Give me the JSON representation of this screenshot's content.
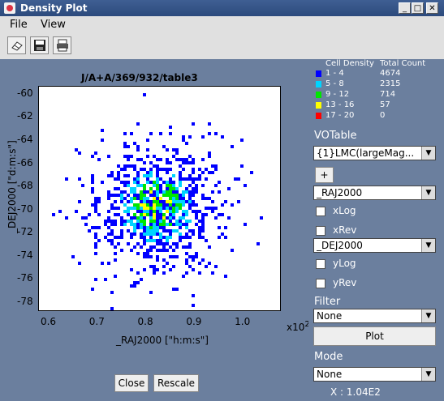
{
  "window": {
    "title": "Density Plot"
  },
  "menu": {
    "file": "File",
    "view": "View"
  },
  "toolbar": {
    "icons": [
      "eraser-icon",
      "save-icon",
      "print-icon"
    ]
  },
  "chart_data": {
    "type": "heatmap",
    "title": "J/A+A/369/932/table3",
    "xlabel": "_RAJ2000 [\"h:m:s\"]",
    "ylabel": "_DEJ2000 [\"d:m:s\"]",
    "x_exponent": "x10",
    "x_exponent_power": "2",
    "xlim": [
      0.58,
      1.08
    ],
    "ylim": [
      -78.8,
      -59.3
    ],
    "x_ticks": [
      "0.6",
      "0.7",
      "0.8",
      "0.9",
      "1.0"
    ],
    "y_ticks": [
      "-60",
      "-62",
      "-64",
      "-66",
      "-68",
      "-70",
      "-72",
      "-74",
      "-76",
      "-78"
    ],
    "legend_title_density": "Cell Density",
    "legend_title_count": "Total Count",
    "bins": [
      {
        "range": "1 - 4",
        "count": "4674",
        "color": "#0000ff"
      },
      {
        "range": "5 - 8",
        "count": "2315",
        "color": "#00d4ff"
      },
      {
        "range": "9 - 12",
        "count": "714",
        "color": "#00e600"
      },
      {
        "range": "13 - 16",
        "count": "57",
        "color": "#ffff00"
      },
      {
        "range": "17 - 20",
        "count": "0",
        "color": "#ff0000"
      }
    ]
  },
  "buttons": {
    "close": "Close",
    "rescale": "Rescale",
    "plus": "+",
    "plot": "Plot"
  },
  "sidebar": {
    "votable_label": "VOTable",
    "votable_value": "{1}LMC(largeMag...",
    "x_column": "_RAJ2000",
    "xlog": "xLog",
    "xrev": "xRev",
    "y_column": "_DEJ2000",
    "ylog": "yLog",
    "yrev": "yRev",
    "filter_label": "Filter",
    "filter_value": "None",
    "mode_label": "Mode",
    "mode_value": "None",
    "coords": "X : 1.04E2"
  }
}
